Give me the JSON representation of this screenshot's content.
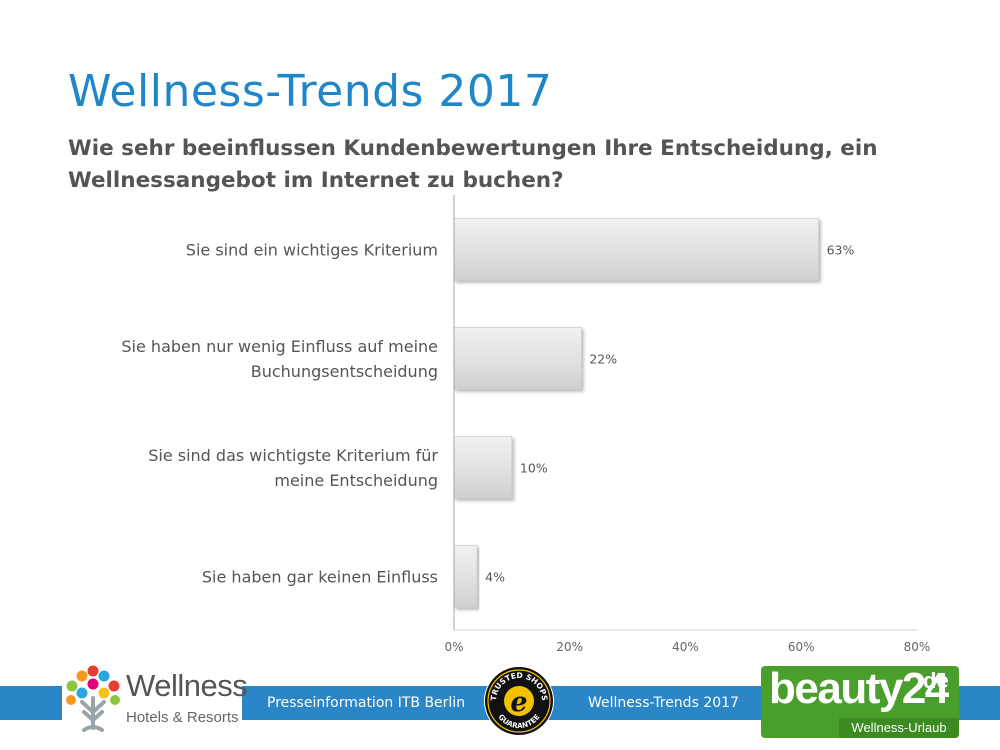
{
  "header": {
    "title": "Wellness-Trends 2017",
    "subtitle": "Wie sehr beeinflussen Kundenbewertungen Ihre Entscheidung, ein Wellnessangebot im Internet zu buchen?"
  },
  "chart_data": {
    "type": "bar",
    "orientation": "horizontal",
    "categories": [
      "Sie sind ein wichtiges Kriterium",
      "Sie haben nur wenig Einfluss auf meine Buchungsentscheidung",
      "Sie sind das wichtigste Kriterium für meine Entscheidung",
      "Sie haben gar keinen Einfluss"
    ],
    "category_lines": [
      [
        "Sie sind ein wichtiges Kriterium"
      ],
      [
        "Sie haben nur wenig Einfluss auf meine",
        "Buchungsentscheidung"
      ],
      [
        "Sie sind das wichtigste Kriterium für",
        "meine Entscheidung"
      ],
      [
        "Sie haben gar keinen Einfluss"
      ]
    ],
    "values": [
      63,
      22,
      10,
      4
    ],
    "data_labels": [
      "63%",
      "22%",
      "10%",
      "4%"
    ],
    "xlim": [
      0,
      80
    ],
    "xticks": [
      0,
      20,
      40,
      60,
      80
    ],
    "xtick_labels": [
      "0%",
      "20%",
      "40%",
      "60%",
      "80%"
    ],
    "grid": false,
    "bar_color": "#e2e2e2"
  },
  "footer": {
    "left_text": "Presseinformation ITB Berlin",
    "right_text": "Wellness-Trends 2017",
    "band_color": "#2a86c7"
  },
  "logos": {
    "wellness": {
      "name": "Wellness",
      "sub": "Hotels & Resorts",
      "icon": "tree-dots-logo-icon"
    },
    "trusted_shops": {
      "top": "TRUSTED SHOPS",
      "bottom": "GUARANTEE",
      "letter": "e"
    },
    "beauty24": {
      "main": "beauty24",
      "suffix": "de",
      "sub": "Wellness-Urlaub"
    }
  }
}
